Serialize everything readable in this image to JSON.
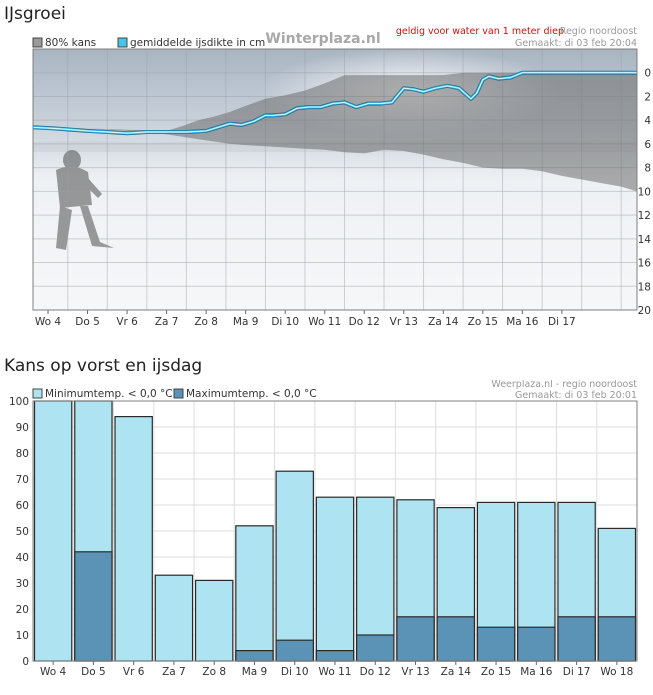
{
  "chart_data": [
    {
      "type": "area",
      "title": "IJsgroei",
      "legend": [
        "80% kans",
        "gemiddelde ijsdikte in cm"
      ],
      "source": "Winterplaza.nl",
      "note": "geldig voor water van 1 meter diep",
      "region": "Regio noordoost",
      "made": "Gemaakt: di 03 feb 20:04",
      "categories": [
        "Wo 4",
        "Do 5",
        "Vr 6",
        "Za 7",
        "Zo 8",
        "Ma 9",
        "Di 10",
        "Wo 11",
        "Do 12",
        "Vr 13",
        "Za 14",
        "Zo 15",
        "Ma 16",
        "Di 17"
      ],
      "yticks": [
        0,
        2,
        4,
        6,
        8,
        10,
        12,
        14,
        16,
        18,
        20
      ],
      "ylim": [
        -2,
        20
      ],
      "y_inverted": true,
      "xlim": [
        -0.38,
        14.9
      ],
      "series": [
        {
          "name": "gemiddelde ijsdikte in cm",
          "x": [
            -0.38,
            0.2,
            0.6,
            1.0,
            1.5,
            2.0,
            2.5,
            3.0,
            3.5,
            4.0,
            4.3,
            4.6,
            4.9,
            5.2,
            5.5,
            5.7,
            6.0,
            6.3,
            6.6,
            6.9,
            7.2,
            7.5,
            7.8,
            8.1,
            8.4,
            8.7,
            9.0,
            9.25,
            9.5,
            9.8,
            10.1,
            10.4,
            10.7,
            10.85,
            11.0,
            11.15,
            11.4,
            11.7,
            12.0,
            12.3,
            13.0,
            14.0,
            14.9
          ],
          "y": [
            4.6,
            4.7,
            4.8,
            4.9,
            5.0,
            5.1,
            5.0,
            5.0,
            5.0,
            4.9,
            4.6,
            4.3,
            4.4,
            4.1,
            3.6,
            3.6,
            3.5,
            3.0,
            2.9,
            2.9,
            2.6,
            2.5,
            2.9,
            2.6,
            2.6,
            2.5,
            1.3,
            1.4,
            1.6,
            1.3,
            1.1,
            1.3,
            2.2,
            1.7,
            0.6,
            0.3,
            0.5,
            0.4,
            0.0,
            0.0,
            0.0,
            0.0,
            0.0
          ]
        },
        {
          "name": "80% kans",
          "x": [
            -0.38,
            1.0,
            2.0,
            3.0,
            3.4,
            3.8,
            4.2,
            4.6,
            5.0,
            5.5,
            6.0,
            6.5,
            7.0,
            7.5,
            8.0,
            8.5,
            9.0,
            9.5,
            10.0,
            10.5,
            11.0,
            11.5,
            12.0,
            12.5,
            13.0,
            13.5,
            14.0,
            14.5,
            14.9
          ],
          "y_low": [
            4.6,
            4.7,
            4.8,
            4.9,
            4.5,
            4.0,
            3.7,
            3.3,
            2.8,
            2.2,
            1.9,
            1.5,
            0.9,
            0.2,
            0.2,
            0.2,
            0.2,
            0.2,
            0.2,
            0.0,
            0.0,
            0.0,
            0.0,
            0.0,
            0.0,
            0.0,
            0.0,
            0.0,
            0.0
          ],
          "y_high": [
            4.6,
            4.7,
            4.9,
            5.2,
            5.4,
            5.6,
            5.8,
            6.0,
            6.1,
            6.2,
            6.3,
            6.4,
            6.5,
            6.7,
            6.8,
            6.5,
            6.6,
            6.9,
            7.3,
            7.6,
            8.0,
            8.1,
            8.1,
            8.3,
            8.7,
            9.0,
            9.3,
            9.6,
            10.0
          ]
        }
      ]
    },
    {
      "type": "bar",
      "title": "Kans op vorst en ijsdag",
      "legend": [
        "Minimumtemp. < 0,0 °C",
        "Maximumtemp. < 0,0 °C"
      ],
      "source": "Weerplaza.nl - regio noordoost",
      "made": "Gemaakt: di 03 feb 20:01",
      "categories": [
        "Wo 4",
        "Do 5",
        "Vr 6",
        "Za 7",
        "Zo 8",
        "Ma 9",
        "Di 10",
        "Wo 11",
        "Do 12",
        "Vr 13",
        "Za 14",
        "Zo 15",
        "Ma 16",
        "Di 17",
        "Wo 18"
      ],
      "ylim": [
        0,
        100
      ],
      "yticks": [
        0,
        10,
        20,
        30,
        40,
        50,
        60,
        70,
        80,
        90,
        100
      ],
      "series": [
        {
          "name": "Minimumtemp. < 0,0 °C",
          "values": [
            100,
            100,
            94,
            33,
            31,
            52,
            73,
            63,
            63,
            62,
            59,
            61,
            61,
            61,
            51
          ]
        },
        {
          "name": "Maximumtemp. < 0,0 °C",
          "values": [
            0,
            42,
            0,
            0,
            0,
            4,
            8,
            4,
            10,
            17,
            17,
            13,
            13,
            17,
            17
          ]
        }
      ]
    }
  ],
  "colors": {
    "min": "#aee3f2",
    "max": "#5a93b6",
    "line": "#47c4ec",
    "band": "#6e6e6e",
    "note": "#cc1111"
  }
}
